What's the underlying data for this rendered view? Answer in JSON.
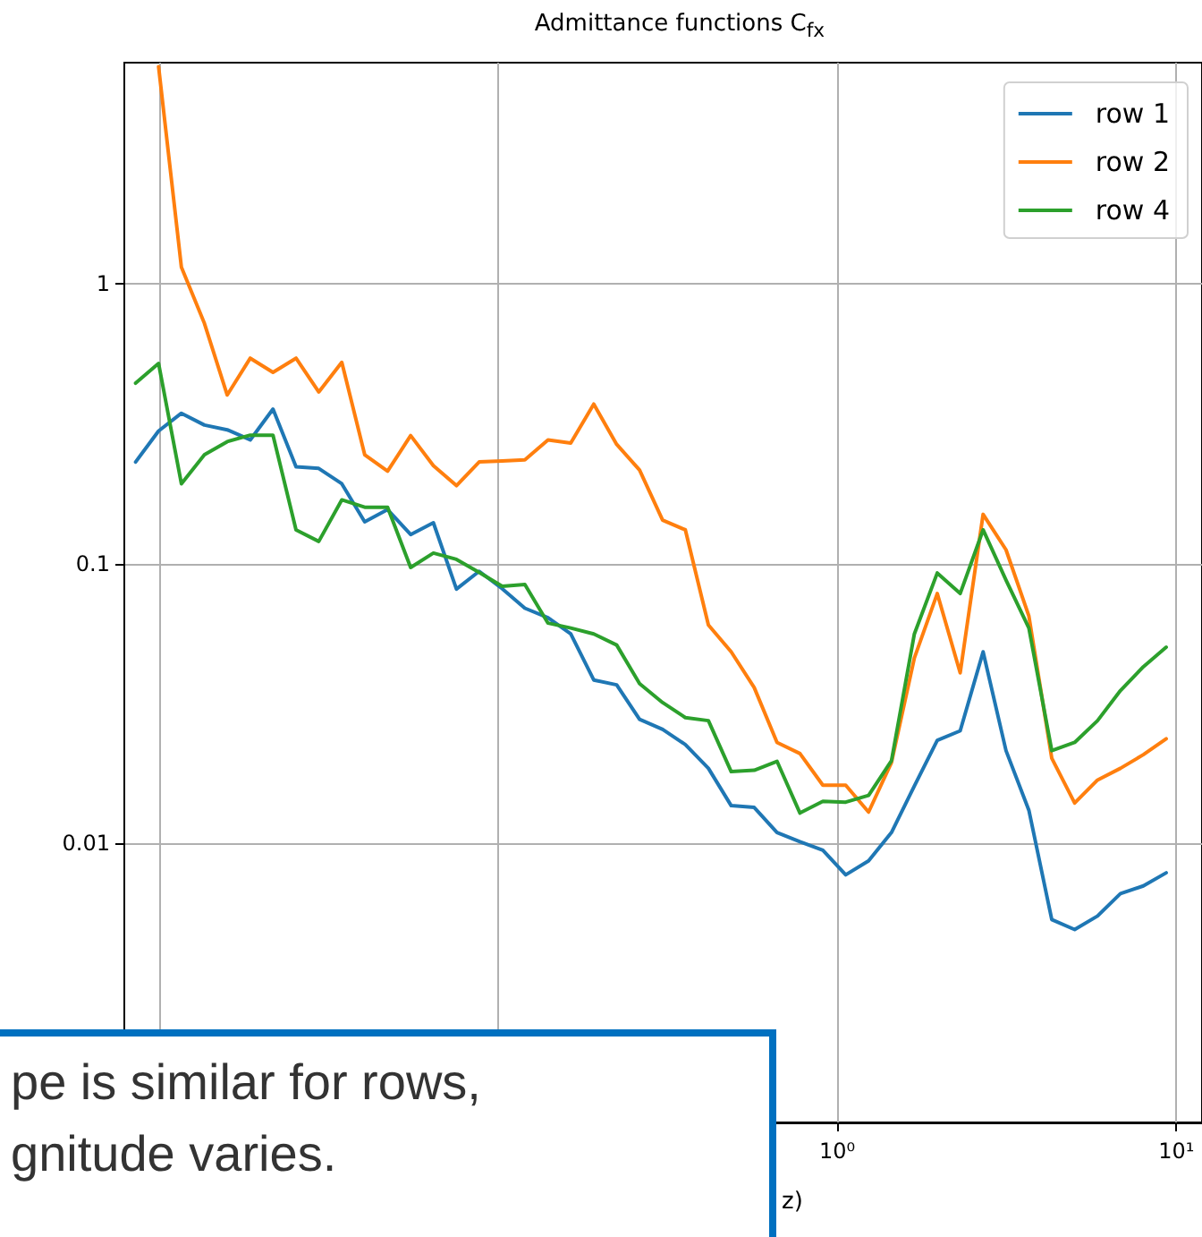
{
  "chart_data": {
    "type": "line",
    "title": "Admittance functions C$_{fx}$",
    "xlabel": "z)",
    "x": [
      0.00853,
      0.00997,
      0.01164,
      0.01361,
      0.01589,
      0.01858,
      0.02168,
      0.02535,
      0.02958,
      0.03459,
      0.04041,
      0.04721,
      0.05521,
      0.06442,
      0.07534,
      0.0879,
      0.1028,
      0.1199,
      0.1403,
      0.1637,
      0.1914,
      0.2236,
      0.2612,
      0.3055,
      0.3565,
      0.4169,
      0.4867,
      0.5689,
      0.6643,
      0.7762,
      0.9068,
      1.059,
      1.237,
      1.445,
      1.688,
      1.972,
      2.304,
      2.692,
      3.145,
      3.673,
      4.291,
      5.012,
      5.855,
      6.839,
      7.99,
      9.333
    ],
    "series": [
      {
        "name": "row 1",
        "color": "#1f77b4",
        "values": [
          0.231,
          0.298,
          0.345,
          0.313,
          0.301,
          0.277,
          0.357,
          0.222,
          0.219,
          0.193,
          0.141,
          0.156,
          0.127,
          0.14,
          0.081,
          0.0938,
          0.0813,
          0.0692,
          0.064,
          0.056,
          0.0383,
          0.0368,
          0.0277,
          0.0255,
          0.0225,
          0.0185,
          0.0136,
          0.0134,
          0.0109,
          0.0101,
          0.00942,
          0.00769,
          0.00863,
          0.0109,
          0.016,
          0.0233,
          0.0252,
          0.0483,
          0.0214,
          0.0131,
          0.00532,
          0.0049,
          0.00548,
          0.00659,
          0.00702,
          0.00782
        ]
      },
      {
        "name": "row 2",
        "color": "#ff7f0e",
        "values": [
          null,
          6,
          1.15,
          0.723,
          0.401,
          0.543,
          0.483,
          0.543,
          0.411,
          0.525,
          0.245,
          0.214,
          0.287,
          0.224,
          0.19,
          0.231,
          0.233,
          0.235,
          0.277,
          0.27,
          0.372,
          0.267,
          0.216,
          0.143,
          0.132,
          0.0603,
          0.0483,
          0.036,
          0.0229,
          0.0209,
          0.0161,
          0.0161,
          0.0129,
          0.0194,
          0.0459,
          0.0781,
          0.0406,
          0.15,
          0.112,
          0.0649,
          0.0201,
          0.0139,
          0.0168,
          0.0185,
          0.0207,
          0.0236
        ]
      },
      {
        "name": "row 4",
        "color": "#2ca02c",
        "values": [
          0.442,
          0.52,
          0.193,
          0.245,
          0.273,
          0.288,
          0.288,
          0.132,
          0.12,
          0.169,
          0.159,
          0.159,
          0.0968,
          0.109,
          0.1035,
          0.0929,
          0.0829,
          0.0841,
          0.0612,
          0.0588,
          0.056,
          0.0511,
          0.0372,
          0.0318,
          0.0281,
          0.0274,
          0.018,
          0.0182,
          0.0196,
          0.0128,
          0.0141,
          0.014,
          0.0148,
          0.0197,
          0.056,
          0.0925,
          0.0781,
          0.132,
          0.0872,
          0.0588,
          0.0214,
          0.0229,
          0.0274,
          0.0351,
          0.0427,
          0.0502
        ]
      }
    ],
    "log": "xy",
    "xlim": [
      0.0079,
      11.9
    ],
    "ylim": [
      0.001,
      6.2
    ],
    "xticks": [
      {
        "value": 0.01,
        "label": null
      },
      {
        "value": 0.1,
        "label": null
      },
      {
        "value": 1,
        "label": "10⁰"
      },
      {
        "value": 10,
        "label": "10¹"
      }
    ],
    "yticks": [
      {
        "value": 0.001,
        "label": null
      },
      0.01,
      0.1,
      1
    ],
    "grid": true,
    "legend": "top right",
    "annotations": [
      "pe is similar for rows,",
      "gnitude varies."
    ]
  }
}
